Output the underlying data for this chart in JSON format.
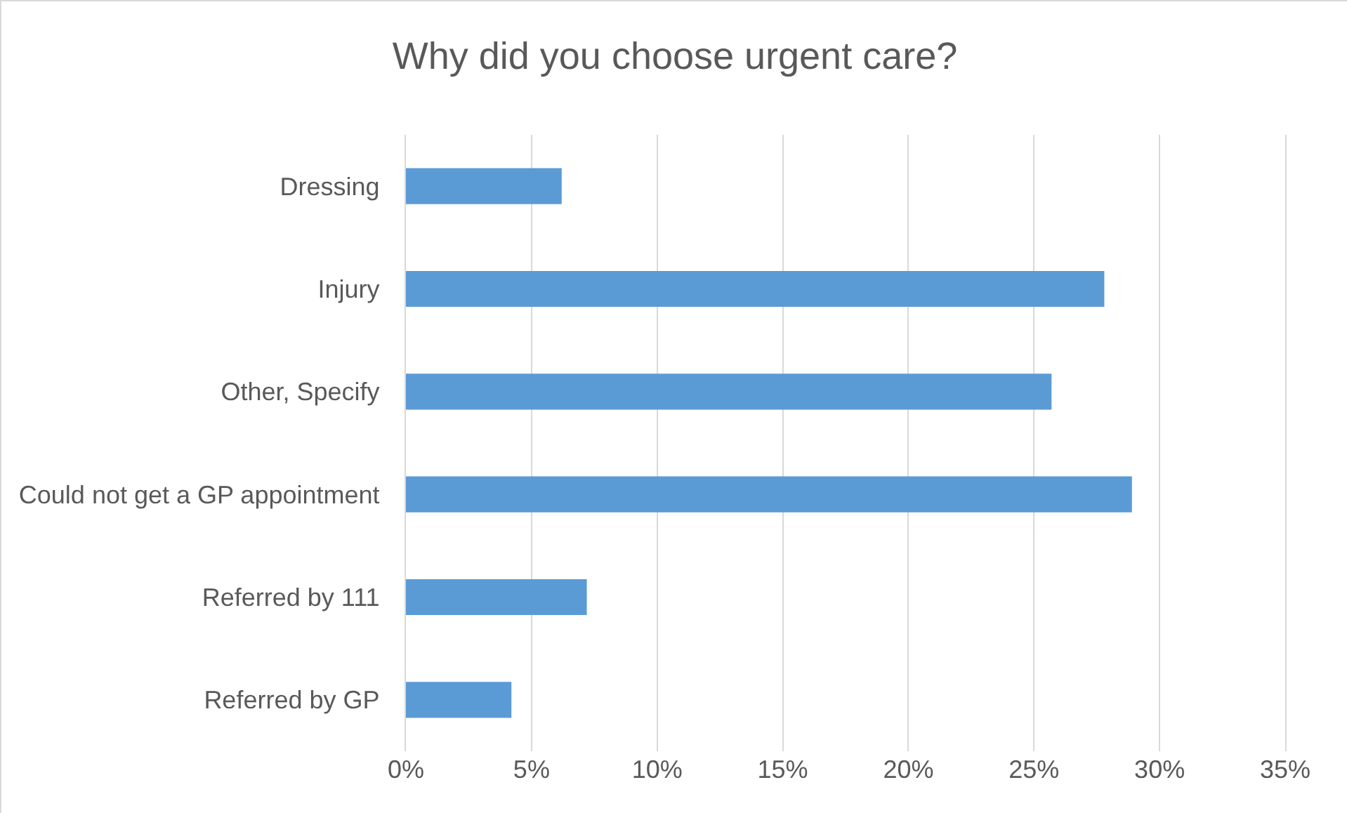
{
  "chart_data": {
    "type": "bar",
    "orientation": "horizontal",
    "title": "Why did you choose urgent care?",
    "categories": [
      "Dressing",
      "Injury",
      "Other, Specify",
      "Could not get a GP appointment",
      "Referred by 111",
      "Referred by GP"
    ],
    "values": [
      6.2,
      27.8,
      25.7,
      28.9,
      7.2,
      4.2
    ],
    "color": "#5b9bd5",
    "xlim": [
      0,
      35
    ],
    "xticks": [
      {
        "value": 0,
        "label": "0%"
      },
      {
        "value": 5,
        "label": "5%"
      },
      {
        "value": 10,
        "label": "10%"
      },
      {
        "value": 15,
        "label": "15%"
      },
      {
        "value": 20,
        "label": "20%"
      },
      {
        "value": 25,
        "label": "25%"
      },
      {
        "value": 30,
        "label": "30%"
      },
      {
        "value": 35,
        "label": "35%"
      }
    ],
    "grid": "x"
  }
}
